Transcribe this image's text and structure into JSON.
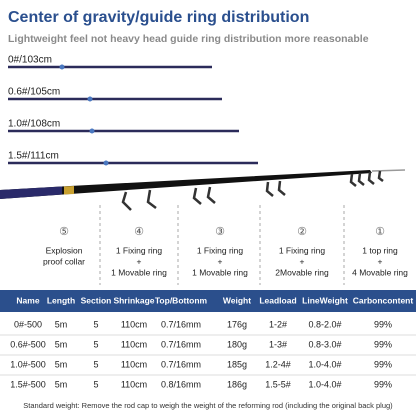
{
  "header": {
    "title": "Center of gravity/guide ring distribution",
    "subtitle": "Lightweight feel not heavy head guide ring distribution more reasonable"
  },
  "rods": [
    "0#/103cm",
    "0.6#/105cm",
    "1.0#/108cm",
    "1.5#/111cm"
  ],
  "rings": [
    {
      "symbol": "⑤",
      "lines": [
        "Explosion",
        "proof collar"
      ]
    },
    {
      "symbol": "④",
      "lines": [
        "1 Fixing ring",
        "+",
        "1 Movable ring"
      ]
    },
    {
      "symbol": "③",
      "lines": [
        "1 Fixing ring",
        "+",
        "1 Movable ring"
      ]
    },
    {
      "symbol": "②",
      "lines": [
        "1 Fixing ring",
        "+",
        "2Movable ring"
      ]
    },
    {
      "symbol": "①",
      "lines": [
        "1 top ring",
        "+",
        "4 Movable ring"
      ]
    }
  ],
  "table": {
    "columns": [
      "Name",
      "Length",
      "Section",
      "Shrinkage",
      "Top/Bottonm",
      "Weight",
      "Leadload",
      "LineWeight",
      "Carboncontent"
    ],
    "rows": [
      [
        "0#-500",
        "5m",
        "5",
        "110cm",
        "0.7/16mm",
        "176g",
        "1-2#",
        "0.8-2.0#",
        "99%"
      ],
      [
        "0.6#-500",
        "5m",
        "5",
        "110cm",
        "0.7/16mm",
        "180g",
        "1-3#",
        "0.8-3.0#",
        "99%"
      ],
      [
        "1.0#-500",
        "5m",
        "5",
        "110cm",
        "0.7/16mm",
        "185g",
        "1.2-4#",
        "1.0-4.0#",
        "99%"
      ],
      [
        "1.5#-500",
        "5m",
        "5",
        "110cm",
        "0.8/16mm",
        "186g",
        "1.5-5#",
        "1.0-4.0#",
        "99%"
      ]
    ]
  },
  "footer": "Standard weight: Remove the rod cap to weigh the weight of the reforming rod (including the original back plug)"
}
